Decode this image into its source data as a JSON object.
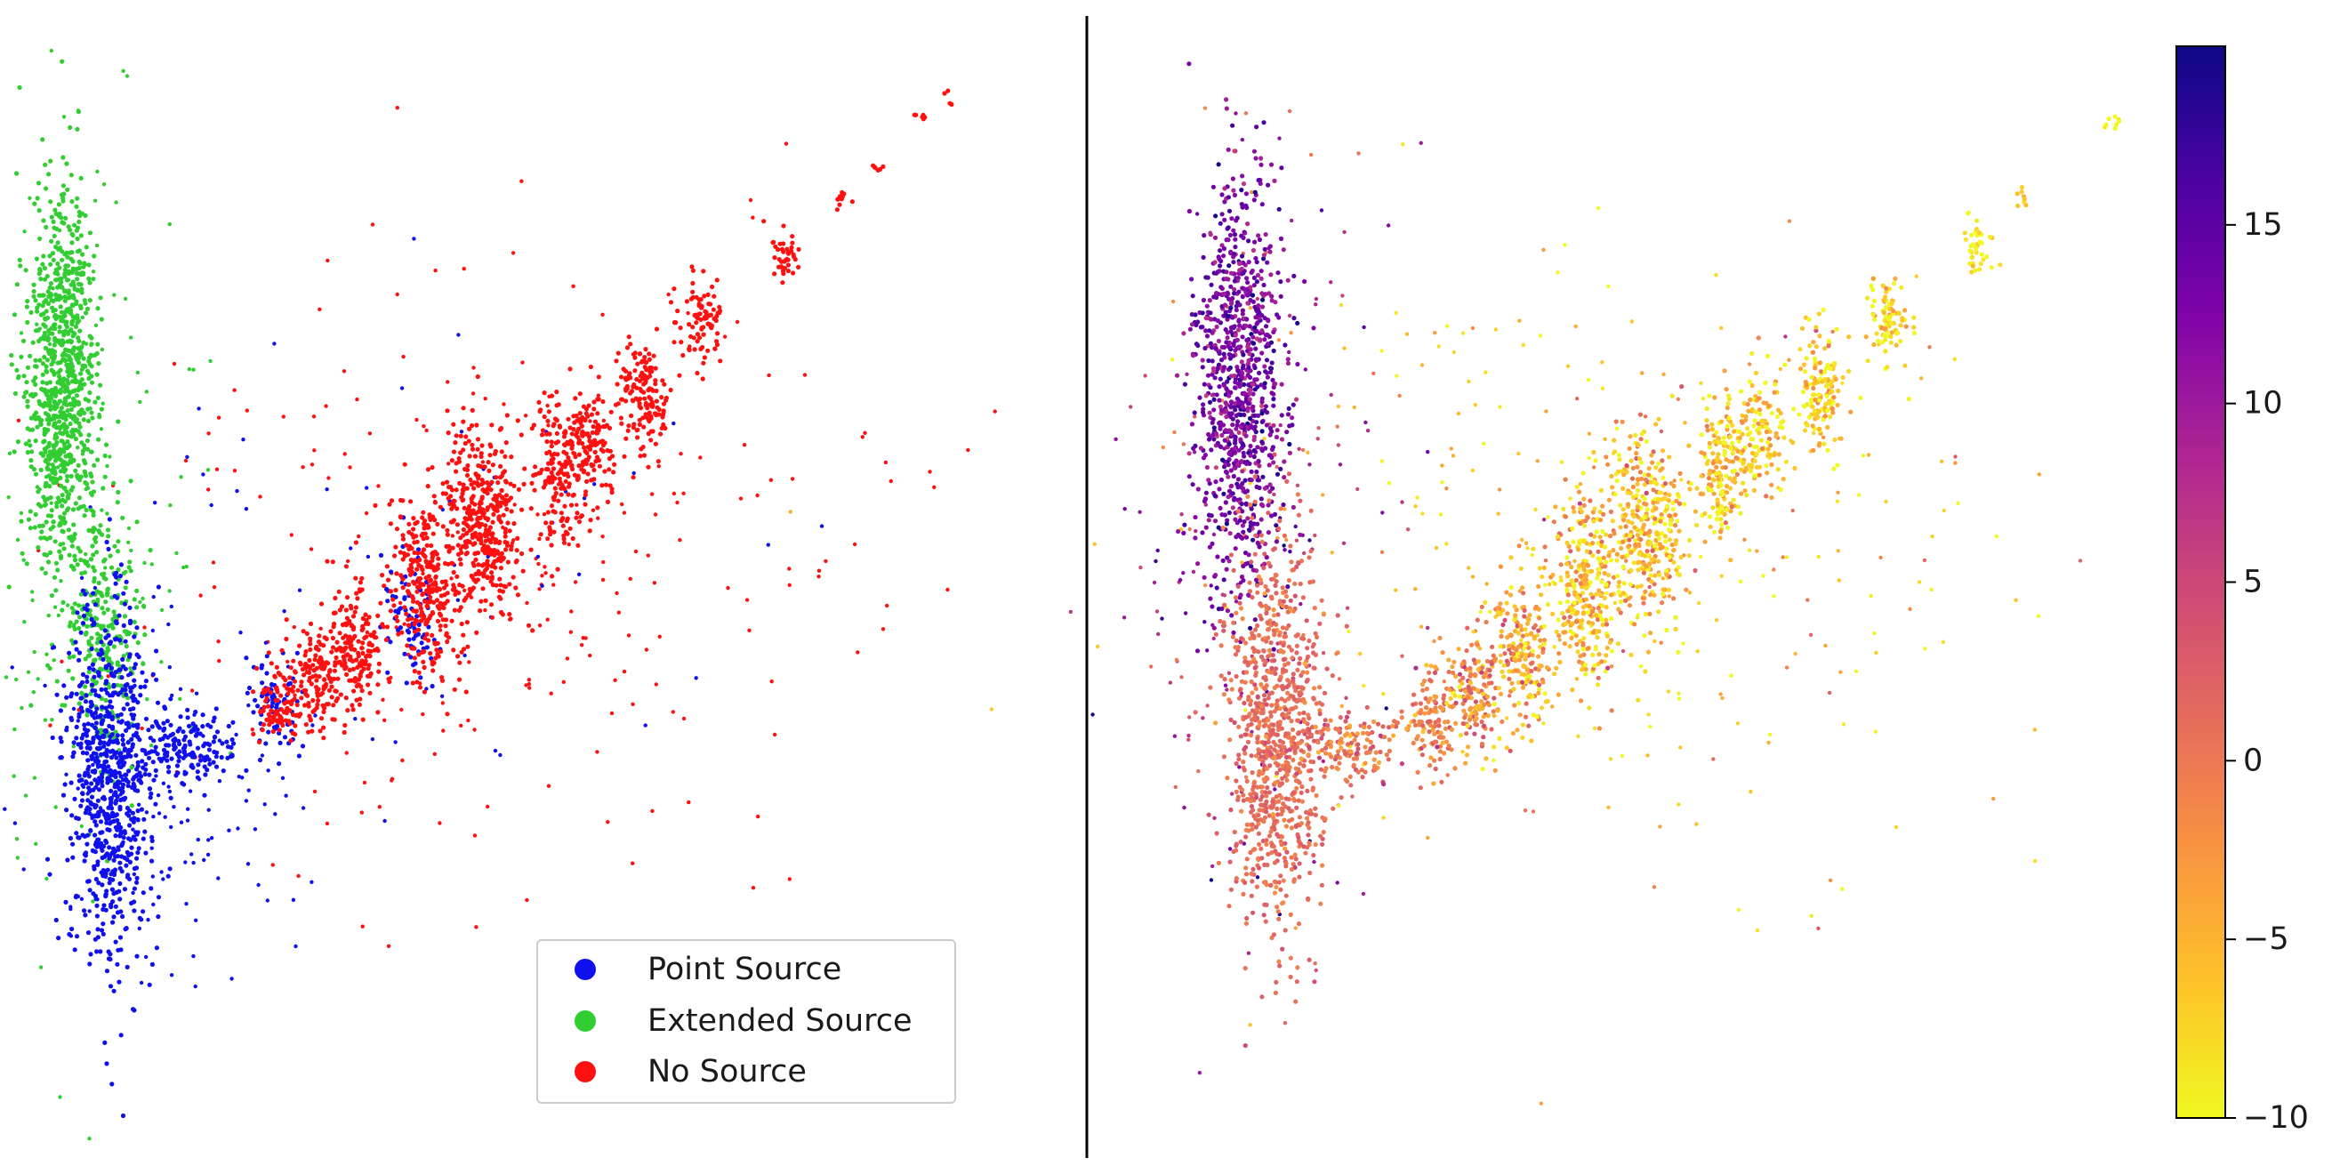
{
  "chart_data": [
    {
      "type": "scatter",
      "title": "",
      "xlabel": "",
      "ylabel": "",
      "axes_visible": false,
      "grid": false,
      "legend": {
        "placement": "lower-right",
        "entries": [
          {
            "label": "Point Source",
            "color": "#1010ee"
          },
          {
            "label": "Extended Source",
            "color": "#32cd32"
          },
          {
            "label": "No Source",
            "color": "#ff1010"
          }
        ]
      },
      "xlim": [
        0,
        100
      ],
      "ylim": [
        0,
        100
      ],
      "clusters": [
        {
          "cls": "Extended Source",
          "x": 4.3,
          "y": 74.0,
          "sx": 1.9,
          "sy": 10.0,
          "n": 900,
          "rot": 0.0
        },
        {
          "cls": "Extended Source",
          "x": 8.6,
          "y": 48.0,
          "sx": 1.9,
          "sy": 7.0,
          "n": 260,
          "rot": 0.0
        },
        {
          "cls": "Point Source",
          "x": 9.5,
          "y": 33.0,
          "sx": 2.3,
          "sy": 9.0,
          "n": 750,
          "rot": 0.0
        },
        {
          "cls": "Point Source",
          "x": 18.0,
          "y": 36.0,
          "sx": 3.0,
          "sy": 1.6,
          "n": 160,
          "rot": 0.0
        },
        {
          "cls": "Point Source",
          "x": 27.5,
          "y": 41.0,
          "sx": 1.4,
          "sy": 2.4,
          "n": 70,
          "rot": 0.3
        },
        {
          "cls": "Point Source",
          "x": 42.0,
          "y": 50.0,
          "sx": 1.5,
          "sy": 3.5,
          "n": 80,
          "rot": 0.3
        },
        {
          "cls": "No Source",
          "x": 27.5,
          "y": 40.0,
          "sx": 1.2,
          "sy": 2.3,
          "n": 90,
          "rot": 0.3
        },
        {
          "cls": "No Source",
          "x": 31.5,
          "y": 42.5,
          "sx": 1.4,
          "sy": 2.6,
          "n": 130,
          "rot": 0.3
        },
        {
          "cls": "No Source",
          "x": 36.0,
          "y": 46.5,
          "sx": 1.6,
          "sy": 3.5,
          "n": 190,
          "rot": 0.3
        },
        {
          "cls": "No Source",
          "x": 43.8,
          "y": 52.5,
          "sx": 2.0,
          "sy": 4.6,
          "n": 320,
          "rot": 0.3
        },
        {
          "cls": "No Source",
          "x": 50.0,
          "y": 59.5,
          "sx": 2.2,
          "sy": 5.1,
          "n": 380,
          "rot": 0.3
        },
        {
          "cls": "No Source",
          "x": 58.0,
          "y": 64.0,
          "sx": 1.5,
          "sy": 3.6,
          "n": 170,
          "rot": 0.3
        },
        {
          "cls": "No Source",
          "x": 61.5,
          "y": 67.5,
          "sx": 1.4,
          "sy": 3.0,
          "n": 130,
          "rot": 0.3
        },
        {
          "cls": "No Source",
          "x": 67.0,
          "y": 72.5,
          "sx": 1.5,
          "sy": 3.2,
          "n": 150,
          "rot": 0.3
        },
        {
          "cls": "No Source",
          "x": 73.3,
          "y": 80.0,
          "sx": 1.2,
          "sy": 2.3,
          "n": 90,
          "rot": 0.3
        },
        {
          "cls": "No Source",
          "x": 82.5,
          "y": 87.0,
          "sx": 0.8,
          "sy": 1.5,
          "n": 40,
          "rot": 0.3
        },
        {
          "cls": "No Source",
          "x": 88.5,
          "y": 92.5,
          "sx": 0.4,
          "sy": 0.6,
          "n": 10,
          "rot": 0.3
        },
        {
          "cls": "No Source",
          "x": 92.0,
          "y": 96.0,
          "sx": 0.4,
          "sy": 0.5,
          "n": 6,
          "rot": 0.3
        },
        {
          "cls": "No Source",
          "x": 97.0,
          "y": 101.5,
          "sx": 0.6,
          "sy": 0.4,
          "n": 6,
          "rot": 0.3
        },
        {
          "cls": "No Source",
          "x": 100.0,
          "y": 103.5,
          "sx": 0.3,
          "sy": 0.5,
          "n": 4,
          "rot": 0.3
        }
      ],
      "scatter_noise": [
        {
          "cls": "Extended Source",
          "x": 6.0,
          "y": 60.0,
          "sx": 6.0,
          "sy": 22.0,
          "n": 180
        },
        {
          "cls": "Point Source",
          "x": 14.0,
          "y": 30.0,
          "sx": 8.0,
          "sy": 10.0,
          "n": 140
        },
        {
          "cls": "No Source",
          "x": 50.0,
          "y": 55.0,
          "sx": 22.0,
          "sy": 16.0,
          "n": 260
        },
        {
          "cls": "Point Source",
          "x": 40.0,
          "y": 55.0,
          "sx": 18.0,
          "sy": 14.0,
          "n": 60
        }
      ]
    },
    {
      "type": "scatter",
      "title": "",
      "xlabel": "",
      "ylabel": "",
      "axes_visible": false,
      "grid": false,
      "colorbar": {
        "colormap": "plasma_r",
        "min": -10,
        "max": 20,
        "ticks": [
          -10,
          -5,
          0,
          5,
          10,
          15
        ],
        "tick_labels": [
          "−10",
          "−5",
          "0",
          "5",
          "10",
          "15"
        ]
      },
      "xlim": [
        0,
        100
      ],
      "ylim": [
        0,
        100
      ],
      "clusters": [
        {
          "x": 5.5,
          "y": 74.0,
          "sx": 2.4,
          "sy": 10.5,
          "n": 950,
          "value": 13.0,
          "vsd": 3.0,
          "rot": 0.0
        },
        {
          "x": 9.5,
          "y": 37.0,
          "sx": 2.6,
          "sy": 10.0,
          "n": 900,
          "value": 1.0,
          "vsd": 1.5,
          "rot": 0.0
        },
        {
          "x": 18.0,
          "y": 36.0,
          "sx": 3.0,
          "sy": 1.8,
          "n": 140,
          "value": 0.0,
          "vsd": 2.5,
          "rot": 0.0
        },
        {
          "x": 26.0,
          "y": 38.5,
          "sx": 1.3,
          "sy": 2.4,
          "n": 120,
          "value": -1.0,
          "vsd": 3.0,
          "rot": 0.3
        },
        {
          "x": 30.5,
          "y": 41.5,
          "sx": 1.5,
          "sy": 3.0,
          "n": 160,
          "value": -2.0,
          "vsd": 4.0,
          "rot": 0.3
        },
        {
          "x": 35.5,
          "y": 46.0,
          "sx": 1.6,
          "sy": 3.4,
          "n": 200,
          "value": -4.0,
          "vsd": 4.0,
          "rot": 0.3
        },
        {
          "x": 42.5,
          "y": 52.5,
          "sx": 1.9,
          "sy": 4.6,
          "n": 310,
          "value": -5.5,
          "vsd": 4.0,
          "rot": 0.3
        },
        {
          "x": 49.0,
          "y": 59.5,
          "sx": 2.1,
          "sy": 5.0,
          "n": 360,
          "value": -6.0,
          "vsd": 4.0,
          "rot": 0.3
        },
        {
          "x": 57.0,
          "y": 64.5,
          "sx": 1.5,
          "sy": 3.6,
          "n": 170,
          "value": -7.0,
          "vsd": 3.5,
          "rot": 0.3
        },
        {
          "x": 61.0,
          "y": 68.0,
          "sx": 1.4,
          "sy": 3.0,
          "n": 130,
          "value": -7.5,
          "vsd": 3.5,
          "rot": 0.3
        },
        {
          "x": 67.5,
          "y": 72.5,
          "sx": 1.4,
          "sy": 3.2,
          "n": 150,
          "value": -7.0,
          "vsd": 3.5,
          "rot": 0.3
        },
        {
          "x": 74.5,
          "y": 80.0,
          "sx": 1.2,
          "sy": 2.3,
          "n": 90,
          "value": -8.0,
          "vsd": 3.0,
          "rot": 0.3
        },
        {
          "x": 84.0,
          "y": 87.5,
          "sx": 0.8,
          "sy": 1.5,
          "n": 40,
          "value": -9.0,
          "vsd": 2.0,
          "rot": 0.3
        },
        {
          "x": 89.0,
          "y": 93.0,
          "sx": 0.4,
          "sy": 0.6,
          "n": 8,
          "value": -8.0,
          "vsd": 2.0,
          "rot": 0.3
        },
        {
          "x": 98.5,
          "y": 100.5,
          "sx": 1.0,
          "sy": 0.6,
          "n": 8,
          "value": -9.5,
          "vsd": 1.0,
          "rot": 0.3
        }
      ],
      "scatter_noise": [
        {
          "x": 8.0,
          "y": 55.0,
          "sx": 8.0,
          "sy": 22.0,
          "n": 200,
          "value": 8.0,
          "vsd": 6.0
        },
        {
          "x": 45.0,
          "y": 55.0,
          "sx": 22.0,
          "sy": 16.0,
          "n": 320,
          "value": -6.0,
          "vsd": 4.0
        }
      ]
    }
  ]
}
